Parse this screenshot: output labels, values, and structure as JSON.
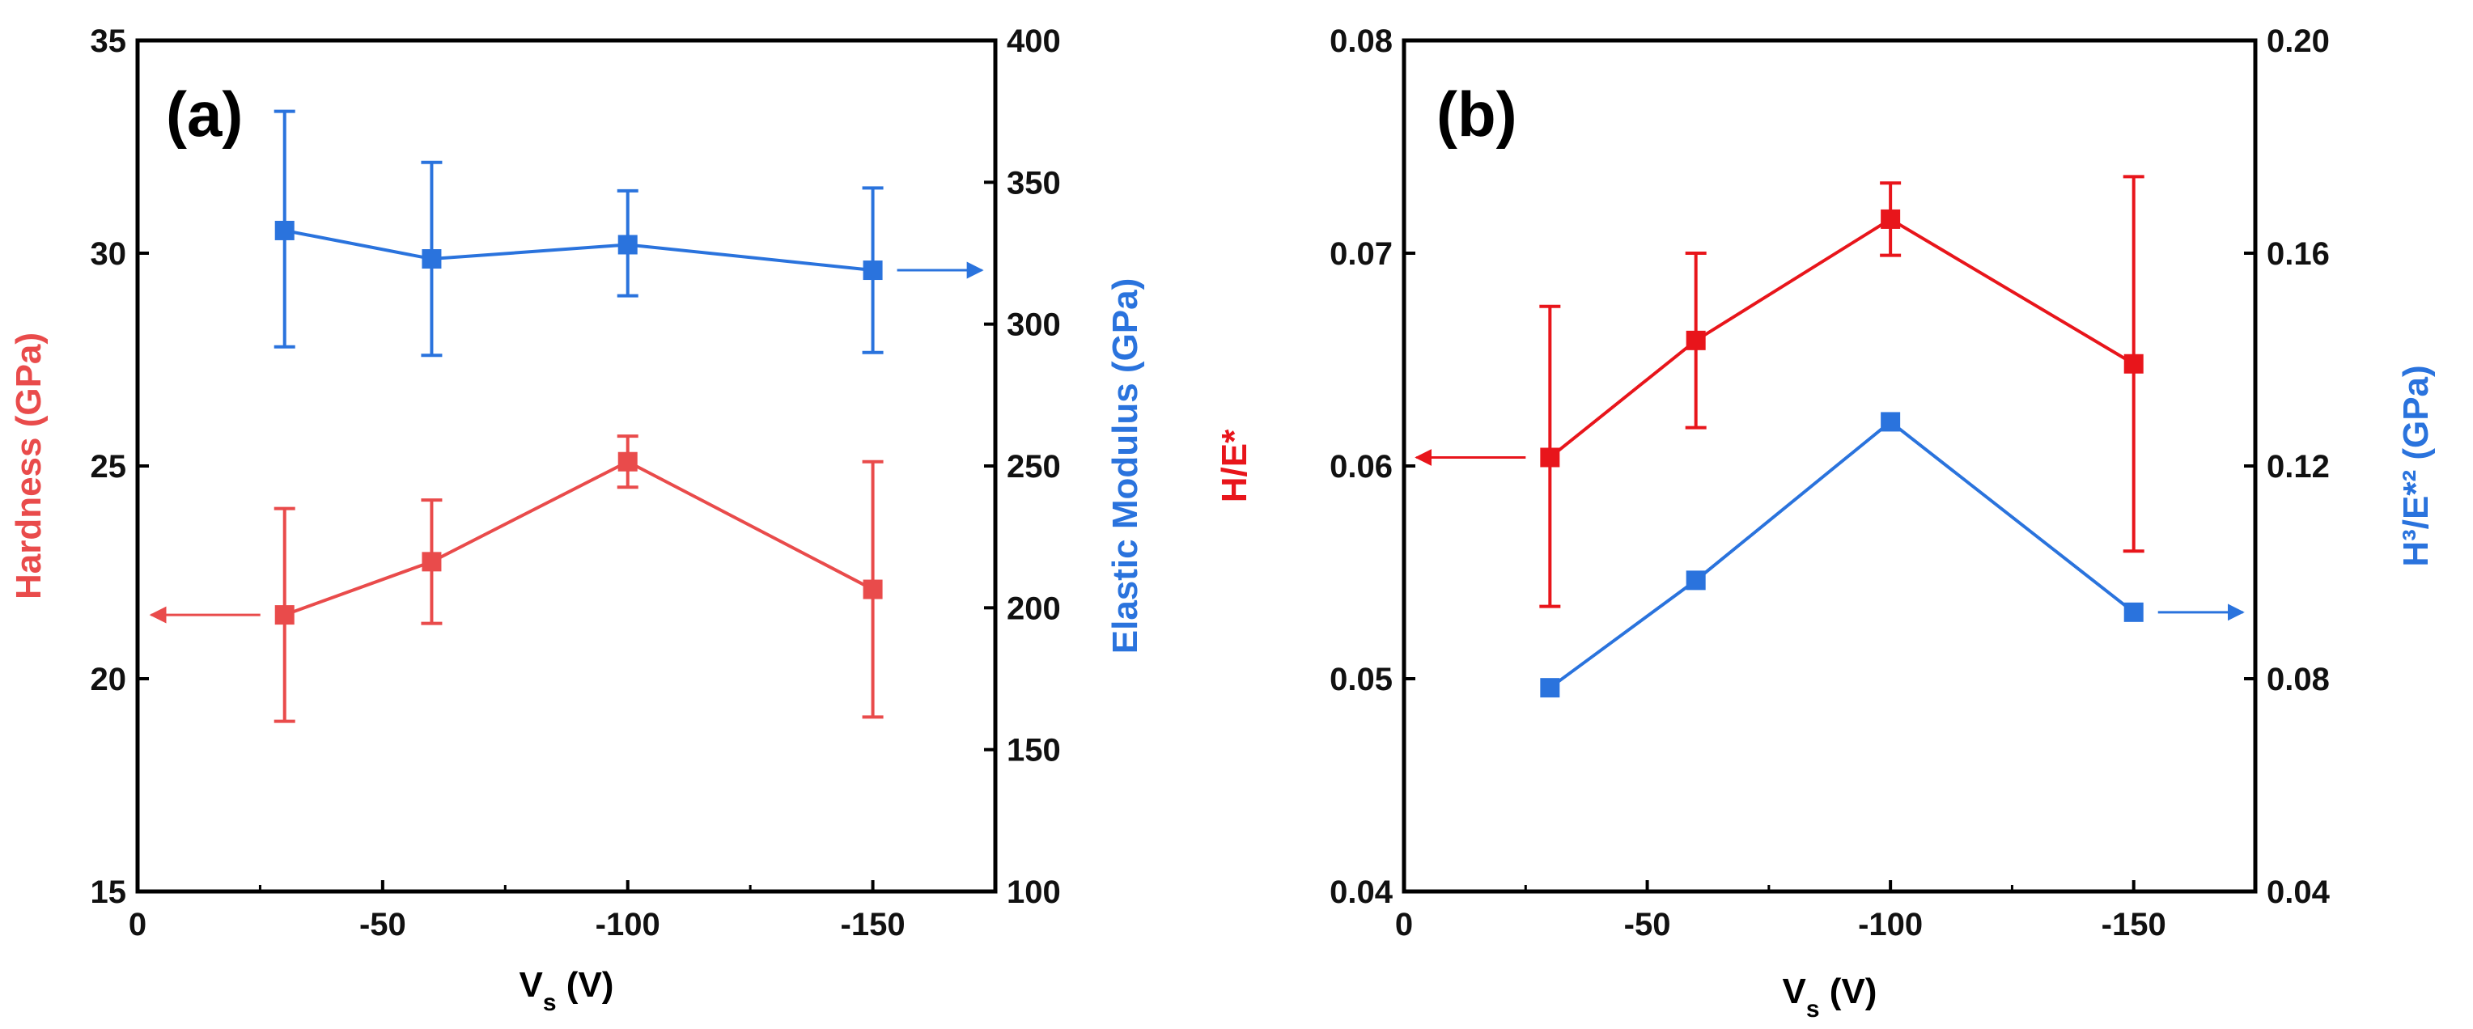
{
  "colors": {
    "red": "#e94b4b",
    "blue": "#2a73dd",
    "deep_red": "#e8151b",
    "axis": "#000000"
  },
  "chart_data": [
    {
      "panel": "(a)",
      "type": "line",
      "xlabel": "V",
      "xlabel_sub": "s",
      "xlabel_unit": " (V)",
      "xlim": [
        0,
        -175
      ],
      "xticks": [
        0,
        -50,
        -100,
        -150
      ],
      "xtick_labels": [
        "0",
        "-50",
        "-100",
        "-150"
      ],
      "left_axis": {
        "label": "Hardness (GPa)",
        "color": "#e94b4b",
        "ylim": [
          15,
          35
        ],
        "ticks": [
          15,
          20,
          25,
          30,
          35
        ],
        "tick_labels": [
          "15",
          "20",
          "25",
          "30",
          "35"
        ]
      },
      "right_axis": {
        "label": "Elastic Modulus (GPa)",
        "color": "#2a73dd",
        "ylim": [
          100,
          400
        ],
        "ticks": [
          100,
          150,
          200,
          250,
          300,
          350,
          400
        ],
        "tick_labels": [
          "100",
          "150",
          "200",
          "250",
          "300",
          "350",
          "400"
        ]
      },
      "series": [
        {
          "name": "Hardness",
          "axis": "left",
          "color": "#e94b4b",
          "x": [
            -30,
            -60,
            -100,
            -150
          ],
          "values": [
            21.5,
            22.75,
            25.1,
            22.1
          ],
          "err_low": [
            19.0,
            21.3,
            24.5,
            19.1
          ],
          "err_high": [
            24.0,
            24.2,
            25.7,
            25.1
          ]
        },
        {
          "name": "Elastic Modulus",
          "axis": "right",
          "color": "#2a73dd",
          "x": [
            -30,
            -60,
            -100,
            -150
          ],
          "values": [
            333,
            323,
            328,
            319
          ],
          "err_low": [
            292,
            289,
            310,
            290
          ],
          "err_high": [
            375,
            357,
            347,
            348
          ]
        }
      ],
      "annotations": [
        {
          "text": "arrow",
          "points_to": "left",
          "series": "Hardness"
        },
        {
          "text": "arrow",
          "points_to": "right",
          "series": "Elastic Modulus"
        }
      ]
    },
    {
      "panel": "(b)",
      "type": "line",
      "xlabel": "V",
      "xlabel_sub": "s",
      "xlabel_unit": " (V)",
      "xlim": [
        0,
        -175
      ],
      "xticks": [
        0,
        -50,
        -100,
        -150
      ],
      "xtick_labels": [
        "0",
        "-50",
        "-100",
        "-150"
      ],
      "left_axis": {
        "label": "H/E*",
        "color": "#e8151b",
        "ylim": [
          0.04,
          0.08
        ],
        "ticks": [
          0.04,
          0.05,
          0.06,
          0.07,
          0.08
        ],
        "tick_labels": [
          "0.04",
          "0.05",
          "0.06",
          "0.07",
          "0.08"
        ]
      },
      "right_axis": {
        "label": "H³/E*² (GPa)",
        "color": "#2a73dd",
        "ylim": [
          0.04,
          0.2
        ],
        "ticks": [
          0.04,
          0.08,
          0.12,
          0.16,
          0.2
        ],
        "tick_labels": [
          "0.04",
          "0.08",
          "0.12",
          "0.16",
          "0.20"
        ]
      },
      "series": [
        {
          "name": "H/E*",
          "axis": "left",
          "color": "#e8151b",
          "x": [
            -30,
            -60,
            -100,
            -150
          ],
          "values": [
            0.0604,
            0.0659,
            0.0716,
            0.0648
          ],
          "err_low": [
            0.0534,
            0.0618,
            0.0699,
            0.056
          ],
          "err_high": [
            0.0675,
            0.07,
            0.0733,
            0.0736
          ]
        },
        {
          "name": "H³/E*²",
          "axis": "right",
          "color": "#2a73dd",
          "x": [
            -30,
            -60,
            -100,
            -150
          ],
          "values": [
            0.0783,
            0.0985,
            0.1283,
            0.0925
          ]
        }
      ],
      "annotations": [
        {
          "text": "arrow",
          "points_to": "left",
          "series": "H/E*"
        },
        {
          "text": "arrow",
          "points_to": "right",
          "series": "H³/E*²"
        }
      ]
    }
  ]
}
